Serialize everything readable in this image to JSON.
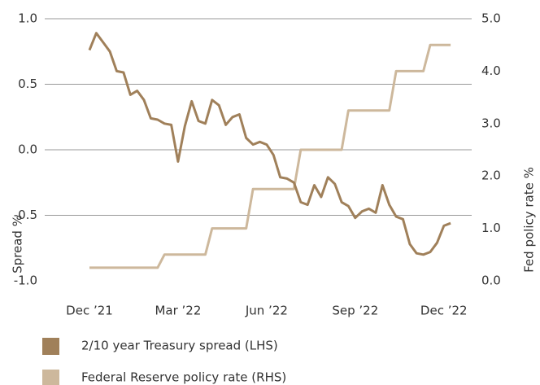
{
  "chart_data": {
    "type": "line",
    "categories": [
      "Dec ’21",
      null,
      null,
      null,
      null,
      null,
      null,
      null,
      null,
      null,
      null,
      null,
      null,
      "Mar ’22",
      null,
      null,
      null,
      null,
      null,
      null,
      null,
      null,
      null,
      null,
      null,
      null,
      "Jun ’22",
      null,
      null,
      null,
      null,
      null,
      null,
      null,
      null,
      null,
      null,
      null,
      null,
      "Sep ’22",
      null,
      null,
      null,
      null,
      null,
      null,
      null,
      null,
      null,
      null,
      null,
      null,
      "Dec ’22",
      null
    ],
    "series": [
      {
        "name": "2/10 year Treasury spread (LHS)",
        "color": "#a0805a",
        "values": [
          0.76,
          0.89,
          0.82,
          0.75,
          0.6,
          0.59,
          0.42,
          0.45,
          0.38,
          0.24,
          0.23,
          0.2,
          0.19,
          -0.09,
          0.18,
          0.37,
          0.22,
          0.2,
          0.38,
          0.34,
          0.19,
          0.25,
          0.27,
          0.09,
          0.04,
          0.06,
          0.04,
          -0.04,
          -0.21,
          -0.22,
          -0.25,
          -0.4,
          -0.42,
          -0.27,
          -0.36,
          -0.21,
          -0.26,
          -0.4,
          -0.43,
          -0.52,
          -0.47,
          -0.45,
          -0.48,
          -0.27,
          -0.42,
          -0.51,
          -0.53,
          -0.72,
          -0.79,
          -0.8,
          -0.78,
          -0.71,
          -0.58,
          -0.56
        ]
      },
      {
        "name": "Federal Reserve policy rate (RHS)",
        "color": "#cdb89c",
        "axis": "y2",
        "values": [
          0.25,
          0.25,
          0.25,
          0.25,
          0.25,
          0.25,
          0.25,
          0.25,
          0.25,
          0.25,
          0.25,
          0.5,
          0.5,
          0.5,
          0.5,
          0.5,
          0.5,
          0.5,
          1.0,
          1.0,
          1.0,
          1.0,
          1.0,
          1.0,
          1.75,
          1.75,
          1.75,
          1.75,
          1.75,
          1.75,
          1.75,
          2.5,
          2.5,
          2.5,
          2.5,
          2.5,
          2.5,
          2.5,
          3.25,
          3.25,
          3.25,
          3.25,
          3.25,
          3.25,
          3.25,
          4.0,
          4.0,
          4.0,
          4.0,
          4.0,
          4.5,
          4.5,
          4.5,
          4.5
        ]
      }
    ],
    "ylabel": "Spread %",
    "y2label": "Fed policy rate %",
    "ylim": [
      -1,
      1
    ],
    "yticks": [
      {
        "value": -1,
        "label": "-1.0"
      },
      -0.5,
      {
        "value": 0,
        "label": "0.0"
      },
      0.5,
      {
        "value": 1,
        "label": "1.0"
      }
    ],
    "y2lim": [
      0,
      5
    ],
    "y2ticks": [
      {
        "value": 0,
        "label": "0.0"
      },
      {
        "value": 1,
        "label": "1.0"
      },
      {
        "value": 2,
        "label": "2.0"
      },
      {
        "value": 3,
        "label": "3.0"
      },
      {
        "value": 4,
        "label": "4.0"
      },
      {
        "value": 5,
        "label": "5.0"
      }
    ],
    "grid": true
  }
}
